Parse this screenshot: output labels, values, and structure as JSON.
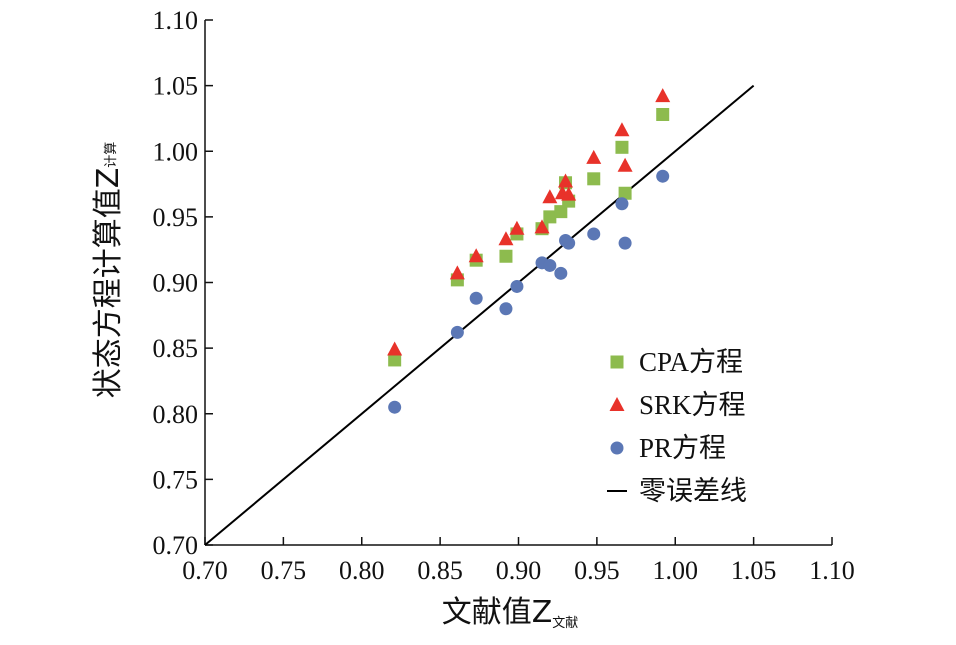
{
  "chart_data": {
    "type": "scatter",
    "xlim": [
      0.7,
      1.1
    ],
    "ylim": [
      0.7,
      1.1
    ],
    "x_ticks": [
      "0.70",
      "0.75",
      "0.80",
      "0.85",
      "0.90",
      "0.95",
      "1.00",
      "1.05",
      "1.10"
    ],
    "y_ticks": [
      "0.70",
      "0.75",
      "0.80",
      "0.85",
      "0.90",
      "0.95",
      "1.00",
      "1.05",
      "1.10"
    ],
    "xlabel": "文献值Z",
    "xlabel_sub": "文献",
    "ylabel": "状态方程计算值Z",
    "ylabel_sub": "计算",
    "legend_position": "right-middle",
    "series": [
      {
        "name": "CPA方程",
        "marker": "square",
        "color": "#8dbb4e",
        "points": [
          [
            0.821,
            0.841
          ],
          [
            0.861,
            0.902
          ],
          [
            0.873,
            0.917
          ],
          [
            0.892,
            0.92
          ],
          [
            0.899,
            0.937
          ],
          [
            0.915,
            0.941
          ],
          [
            0.92,
            0.95
          ],
          [
            0.927,
            0.954
          ],
          [
            0.93,
            0.976
          ],
          [
            0.932,
            0.962
          ],
          [
            0.948,
            0.979
          ],
          [
            0.966,
            1.003
          ],
          [
            0.968,
            0.968
          ],
          [
            0.992,
            1.028
          ]
        ]
      },
      {
        "name": "SRK方程",
        "marker": "triangle",
        "color": "#e8322a",
        "points": [
          [
            0.821,
            0.849
          ],
          [
            0.861,
            0.907
          ],
          [
            0.873,
            0.92
          ],
          [
            0.892,
            0.933
          ],
          [
            0.899,
            0.941
          ],
          [
            0.915,
            0.942
          ],
          [
            0.92,
            0.965
          ],
          [
            0.928,
            0.968
          ],
          [
            0.93,
            0.977
          ],
          [
            0.932,
            0.967
          ],
          [
            0.948,
            0.995
          ],
          [
            0.966,
            1.016
          ],
          [
            0.968,
            0.989
          ],
          [
            0.992,
            1.042
          ]
        ]
      },
      {
        "name": "PR方程",
        "marker": "circle",
        "color": "#5b77b5",
        "points": [
          [
            0.821,
            0.805
          ],
          [
            0.861,
            0.862
          ],
          [
            0.873,
            0.888
          ],
          [
            0.892,
            0.88
          ],
          [
            0.899,
            0.897
          ],
          [
            0.915,
            0.915
          ],
          [
            0.92,
            0.913
          ],
          [
            0.927,
            0.907
          ],
          [
            0.93,
            0.932
          ],
          [
            0.932,
            0.93
          ],
          [
            0.948,
            0.937
          ],
          [
            0.966,
            0.96
          ],
          [
            0.968,
            0.93
          ],
          [
            0.992,
            0.981
          ]
        ]
      }
    ],
    "reference_line": {
      "name": "零误差线",
      "from": [
        0.7,
        0.7
      ],
      "to": [
        1.05,
        1.05
      ],
      "color": "#000000"
    }
  }
}
